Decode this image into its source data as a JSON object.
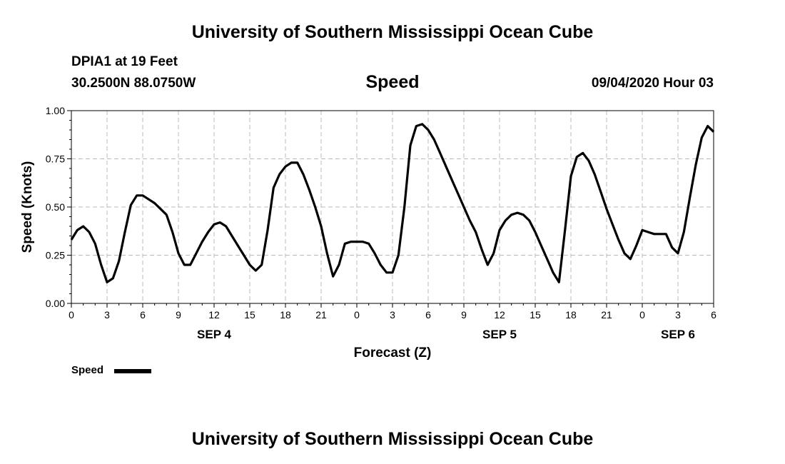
{
  "header": {
    "title_top": "University of Southern Mississippi Ocean Cube",
    "station": "DPIA1 at 19 Feet",
    "coords": "30.2500N 88.0750W",
    "variable": "Speed",
    "timestamp": "09/04/2020 Hour 03"
  },
  "footer": {
    "title_bottom": "University of Southern Mississippi Ocean Cube"
  },
  "legend": {
    "label": "Speed",
    "color": "#000000"
  },
  "chart_data": {
    "type": "line",
    "title": "Speed",
    "xlabel": "Forecast (Z)",
    "ylabel": "Speed (Knots)",
    "ylim": [
      0,
      1.0
    ],
    "yticks": [
      "0.00",
      "0.25",
      "0.50",
      "0.75",
      "1.00"
    ],
    "xlim": [
      0,
      54
    ],
    "xtick_labels": [
      "0",
      "3",
      "6",
      "9",
      "12",
      "15",
      "18",
      "21",
      "0",
      "3",
      "6",
      "9",
      "12",
      "15",
      "18",
      "21",
      "0",
      "3",
      "6"
    ],
    "date_labels": [
      {
        "label": "SEP 4",
        "at": 12
      },
      {
        "label": "SEP 5",
        "at": 36
      },
      {
        "label": "SEP 6",
        "at": 51
      }
    ],
    "grid": true,
    "series": [
      {
        "name": "Speed",
        "color": "#000000",
        "x": [
          0,
          0.5,
          1,
          1.5,
          2,
          2.5,
          3,
          3.5,
          4,
          4.5,
          5,
          5.5,
          6,
          6.5,
          7,
          7.5,
          8,
          8.5,
          9,
          9.5,
          10,
          10.5,
          11,
          11.5,
          12,
          12.5,
          13,
          13.5,
          14,
          14.5,
          15,
          15.5,
          16,
          16.5,
          17,
          17.5,
          18,
          18.5,
          19,
          19.5,
          20,
          20.5,
          21,
          21.5,
          22,
          22.5,
          23,
          23.5,
          24,
          24.5,
          25,
          25.5,
          26,
          26.5,
          27,
          27.5,
          28,
          28.5,
          29,
          29.5,
          30,
          30.5,
          31,
          31.5,
          32,
          32.5,
          33,
          33.5,
          34,
          34.5,
          35,
          35.5,
          36,
          36.5,
          37,
          37.5,
          38,
          38.5,
          39,
          39.5,
          40,
          40.5,
          41,
          41.5,
          42,
          42.5,
          43,
          43.5,
          44,
          44.5,
          45,
          45.5,
          46,
          46.5,
          47,
          47.5,
          48,
          48.5,
          49,
          49.5,
          50,
          50.5,
          51,
          51.5,
          52,
          52.5,
          53,
          53.5,
          54
        ],
        "values": [
          0.33,
          0.38,
          0.4,
          0.37,
          0.31,
          0.2,
          0.11,
          0.13,
          0.22,
          0.37,
          0.51,
          0.56,
          0.56,
          0.54,
          0.52,
          0.49,
          0.46,
          0.37,
          0.26,
          0.2,
          0.2,
          0.26,
          0.32,
          0.37,
          0.41,
          0.42,
          0.4,
          0.35,
          0.3,
          0.25,
          0.2,
          0.17,
          0.2,
          0.38,
          0.6,
          0.67,
          0.71,
          0.73,
          0.73,
          0.67,
          0.59,
          0.5,
          0.4,
          0.26,
          0.14,
          0.2,
          0.31,
          0.32,
          0.32,
          0.32,
          0.31,
          0.26,
          0.2,
          0.16,
          0.16,
          0.25,
          0.5,
          0.82,
          0.92,
          0.93,
          0.9,
          0.85,
          0.78,
          0.71,
          0.64,
          0.57,
          0.5,
          0.43,
          0.37,
          0.28,
          0.2,
          0.26,
          0.38,
          0.43,
          0.46,
          0.47,
          0.46,
          0.43,
          0.37,
          0.3,
          0.23,
          0.16,
          0.11,
          0.38,
          0.66,
          0.76,
          0.78,
          0.74,
          0.67,
          0.58,
          0.49,
          0.41,
          0.33,
          0.26,
          0.23,
          0.3,
          0.38,
          0.37,
          0.36,
          0.36,
          0.36,
          0.29,
          0.26,
          0.37,
          0.55,
          0.72,
          0.86,
          0.92,
          0.89
        ]
      }
    ]
  }
}
